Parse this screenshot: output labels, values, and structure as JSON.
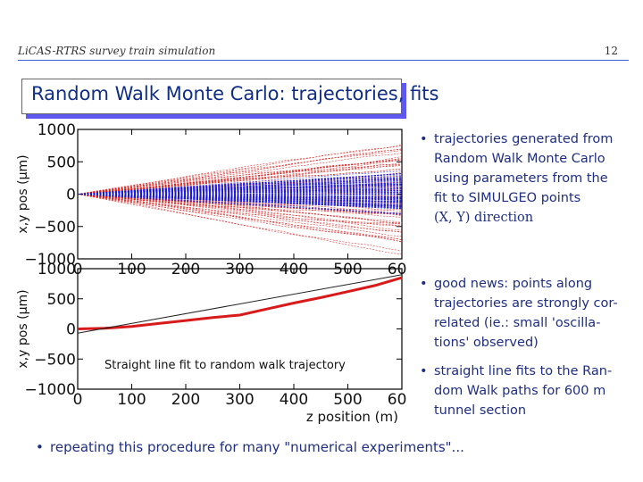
{
  "header": {
    "title": "LiCAS-RTRS survey train simulation",
    "page": "12"
  },
  "slide_title": "Random Walk Monte Carlo: trajectories, fits",
  "colors": {
    "header_rule": "#3d5fd6",
    "title_shadow": "#5f58ee",
    "title_text": "#102e86",
    "bullet_text": "#1f2e80",
    "red": "#d81a1a",
    "blue": "#1a1ad8"
  },
  "bullets": [
    {
      "lines": [
        "trajectories generated from",
        "Random Walk Monte Carlo",
        "using parameters from the",
        "fit to SIMULGEO points",
        "(X, Y) direction"
      ]
    },
    {
      "lines": [
        "good news:  points along",
        "trajectories are strongly cor-",
        "related (ie.: small 'oscilla-",
        "tions' observed)"
      ]
    },
    {
      "lines": [
        "straight line fits to the Ran-",
        "dom Walk paths for 600 m",
        "tunnel section"
      ]
    }
  ],
  "bottom_bullet": "repeating this procedure for many \"numerical experiments\"...",
  "chart_data": [
    {
      "type": "line",
      "xlim": [
        0,
        600
      ],
      "ylim": [
        -1000,
        1000
      ],
      "ylabel": "x,y pos (μm)",
      "x_ticks": [
        "0",
        "100",
        "200",
        "300",
        "400",
        "500",
        "600"
      ],
      "y_ticks": [
        "1000",
        "500",
        "0",
        "−500",
        "−1000"
      ],
      "series": [
        {
          "color": "red",
          "envelope_at_600": [
            -1000,
            1000
          ]
        },
        {
          "color": "blue",
          "envelope_at_600": [
            -400,
            400
          ]
        }
      ]
    },
    {
      "type": "line",
      "xlim": [
        0,
        600
      ],
      "ylim": [
        -1000,
        1000
      ],
      "ylabel": "x,y pos (μm)",
      "xlabel": "z position (m)",
      "annotation": "Straight line fit to random walk trajectory",
      "x_ticks": [
        "0",
        "100",
        "200",
        "300",
        "400",
        "500",
        "600"
      ],
      "y_ticks": [
        "1000",
        "500",
        "0",
        "−500",
        "−1000"
      ],
      "series": [
        {
          "color": "red",
          "x": [
            0,
            50,
            100,
            150,
            200,
            250,
            300,
            350,
            400,
            450,
            500,
            550,
            600
          ],
          "y": [
            0,
            10,
            40,
            90,
            140,
            190,
            230,
            330,
            430,
            520,
            620,
            720,
            850
          ]
        },
        {
          "color": "black",
          "x": [
            0,
            600
          ],
          "y": [
            -70,
            900
          ]
        }
      ]
    }
  ]
}
